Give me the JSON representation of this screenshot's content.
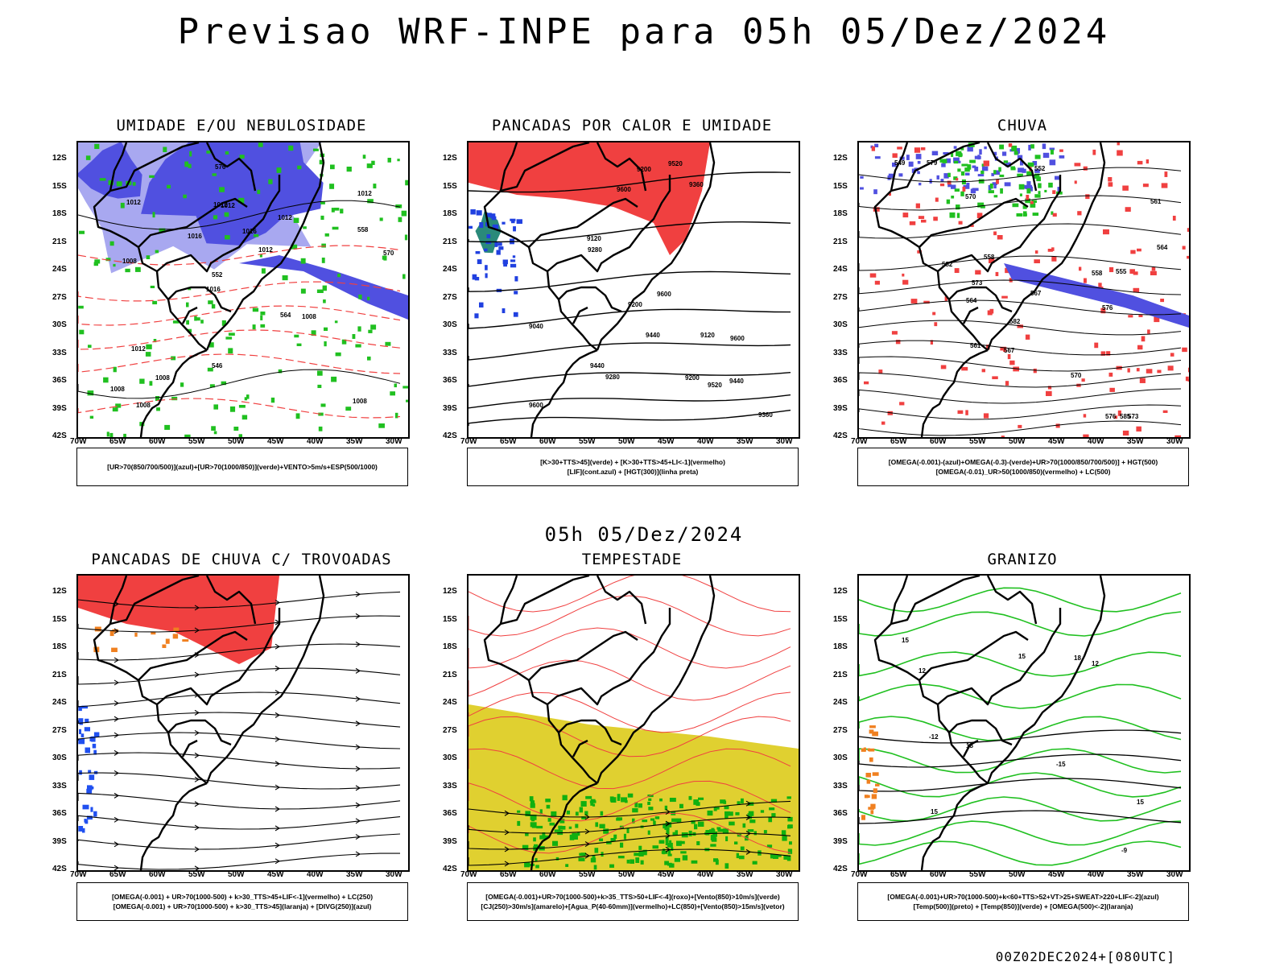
{
  "header": {
    "title": "Previsao WRF-INPE  para 05h 05/Dez/2024",
    "subtitle": "05h 05/Dez/2024",
    "footer": "00Z02DEC2024+[080UTC]"
  },
  "axes": {
    "lat_labels": [
      "12S",
      "15S",
      "18S",
      "21S",
      "24S",
      "27S",
      "30S",
      "33S",
      "36S",
      "39S",
      "42S"
    ],
    "lon_labels": [
      "70W",
      "65W",
      "60W",
      "55W",
      "50W",
      "45W",
      "40W",
      "35W",
      "30W"
    ]
  },
  "colors": {
    "blue_humidity": "#5050e0",
    "light_blue": "#a8a8f0",
    "green": "#20c020",
    "red": "#f04040",
    "yellow": "#e0d030",
    "orange": "#f08020"
  },
  "panels": [
    {
      "title": "UMIDADE E/OU NEBULOSIDADE",
      "legend": [
        "[UR>70(850/700/500)](azul)+[UR>70(1000/850)](verde)+VENTO>5m/s+ESP(500/1000)"
      ],
      "labels": [
        "1008",
        "1008",
        "1012",
        "1016",
        "1012",
        "1008",
        "1012",
        "1016",
        "1012",
        "1016",
        "1008",
        "1008",
        "1012",
        "1012",
        "1008",
        "1012",
        "576",
        "570",
        "564",
        "558",
        "552",
        "546"
      ]
    },
    {
      "title": "PANCADAS POR CALOR E UMIDADE",
      "legend": [
        "[K>30+TTS>45](verde) + [K>30+TTS>45+LI<-1](vermelho)",
        "[LIF](cont.azul) + [HGT(300)](linha preta)"
      ],
      "labels": [
        "9600",
        "9600",
        "9600",
        "9440",
        "9600",
        "9520",
        "9440",
        "9360",
        "9520",
        "9440",
        "9360",
        "9280",
        "9280",
        "9200",
        "9200",
        "9120",
        "9120",
        "9040",
        "9200"
      ]
    },
    {
      "title": "CHUVA",
      "legend": [
        "[OMEGA(-0.001)-(azul)+OMEGA(-0.3)-(verde)+UR>70(1000/850/700/500)] + HGT(500)",
        "[OMEGA(-0.01)_UR>50(1000/850)(vermelho) + LC(500)"
      ],
      "labels": [
        "582",
        "582",
        "579",
        "576",
        "573",
        "570",
        "567",
        "564",
        "561",
        "558",
        "555",
        "552",
        "549",
        "576",
        "573",
        "570",
        "567",
        "564",
        "561",
        "558",
        "585"
      ]
    },
    {
      "title": "PANCADAS DE CHUVA C/ TROVOADAS",
      "legend": [
        "[OMEGA(-0.001) + UR>70(1000-500) + k>30_TTS>45+LIF<-1](vermelho) + LC(250)",
        "[OMEGA(-0.001) + UR>70(1000-500) + k>30_TTS>45](laranja) + [DIVG(250)](azul)"
      ],
      "labels": []
    },
    {
      "title": "TEMPESTADE",
      "legend": [
        "[OMEGA(-0.001)+UR>70(1000-500)+k>35_TTS>50+LIF<-4](roxo)+[Vento(850)>10m/s](verde)",
        "[CJ(250)>30m/s](amarelo)+[Agua_P(40-60mm)](vermelho)+LC(850)+[Vento(850)>15m/s](vetor)"
      ],
      "labels": []
    },
    {
      "title": "GRANIZO",
      "legend": [
        "[OMEGA(-0.001)+UR>70(1000-500)+k<60+TTS>52+VT>25+SWEAT>220+LIF<-2](azul)",
        "[Temp(500)](preto) + [Temp(850)](verde) + [OMEGA(500)<-2](laranja)"
      ],
      "labels": [
        "-9",
        "-12",
        "-15",
        "15",
        "15",
        "12",
        "15",
        "18",
        "12",
        "15",
        "18"
      ]
    }
  ]
}
